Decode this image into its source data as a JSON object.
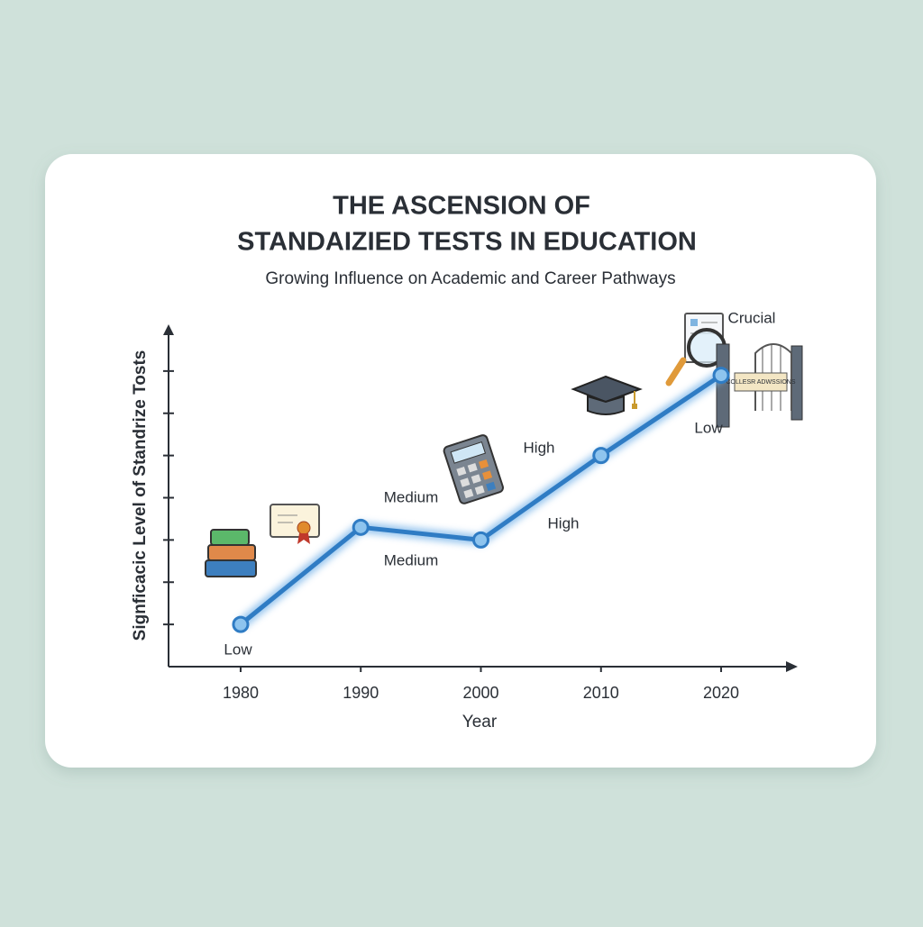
{
  "chart_data": {
    "type": "line",
    "title": [
      "THE ASCENSION OF",
      "STANDAIZIED TESTS IN EDUCATION"
    ],
    "subtitle": "Growing Influence on Academic and Career Pathways",
    "x_label": "Year",
    "y_label": "Signficacic Level of Standrize Tosts",
    "x": [
      1980,
      1990,
      2000,
      2010,
      2020
    ],
    "series": [
      {
        "color": "#2f7cc4",
        "values": [
          1,
          3.3,
          3,
          5,
          6.9
        ]
      }
    ],
    "xlim": [
      1974,
      2026
    ],
    "xticks": [
      1980,
      1990,
      2000,
      2010,
      2020
    ],
    "ylim": [
      0,
      8
    ],
    "yticks": [
      1,
      2,
      3,
      4,
      5,
      6,
      7
    ],
    "annotations": [
      "Low",
      "Medium",
      "Medium",
      "High",
      "High",
      "Low",
      "Crucial"
    ],
    "icon_text": "COLLESR ADWSSIONS"
  }
}
